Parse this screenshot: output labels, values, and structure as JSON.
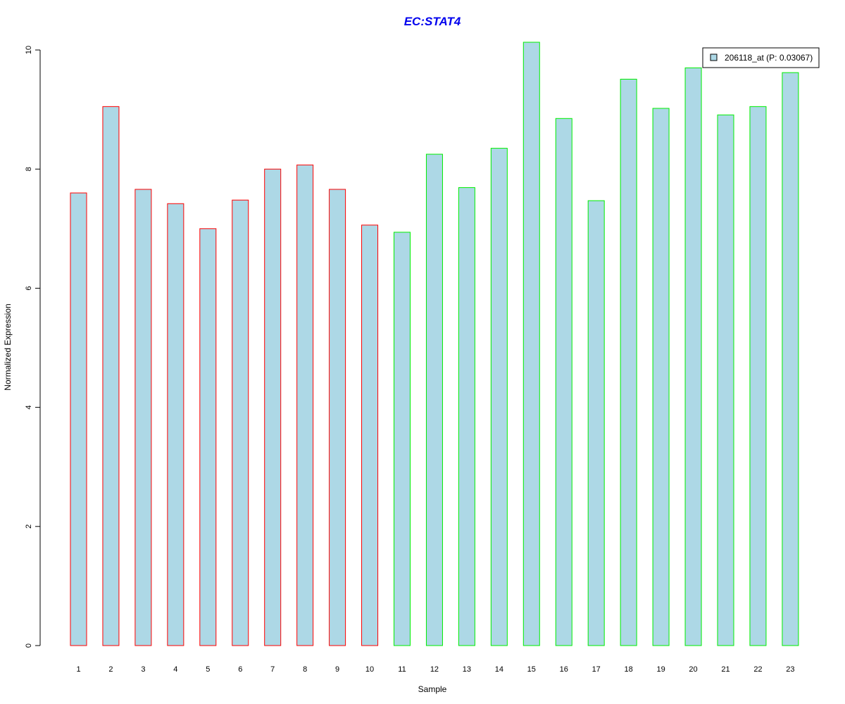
{
  "chart_data": {
    "type": "bar",
    "title": "EC:STAT4",
    "xlabel": "Sample",
    "ylabel": "Normalized Expression",
    "categories": [
      "1",
      "2",
      "3",
      "4",
      "5",
      "6",
      "7",
      "8",
      "9",
      "10",
      "11",
      "12",
      "13",
      "14",
      "15",
      "16",
      "17",
      "18",
      "19",
      "20",
      "21",
      "22",
      "23"
    ],
    "values": [
      7.6,
      9.05,
      7.66,
      7.42,
      7.0,
      7.48,
      8.0,
      8.07,
      7.66,
      7.06,
      6.94,
      8.25,
      7.69,
      8.35,
      10.13,
      8.85,
      7.47,
      9.51,
      9.02,
      9.7,
      8.91,
      9.05,
      9.62
    ],
    "groups": [
      "red",
      "red",
      "red",
      "red",
      "red",
      "red",
      "red",
      "red",
      "red",
      "red",
      "green",
      "green",
      "green",
      "green",
      "green",
      "green",
      "green",
      "green",
      "green",
      "green",
      "green",
      "green",
      "green"
    ],
    "ylim": [
      0,
      10
    ],
    "yticks": [
      "0",
      "2",
      "4",
      "6",
      "8",
      "10"
    ],
    "legend": {
      "label": "206118_at (P: 0.03067)",
      "position": "top-right"
    },
    "grid": false,
    "colors": {
      "fill": "#add8e6",
      "red": "#ff0000",
      "green": "#00ee00",
      "title": "#0000ee",
      "axis": "#000000"
    }
  }
}
